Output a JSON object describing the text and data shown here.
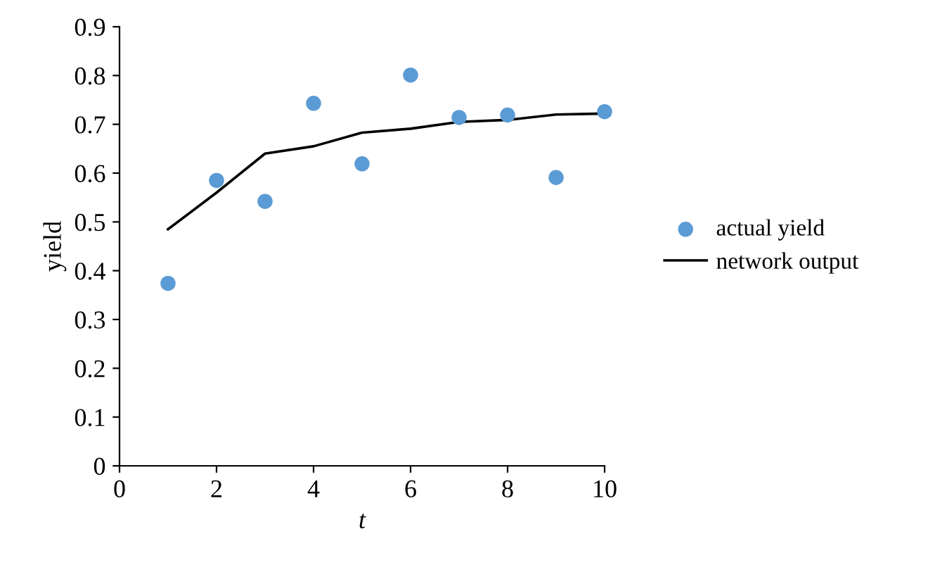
{
  "chart_data": {
    "type": "scatter",
    "xlabel": "t",
    "ylabel": "yield",
    "x": [
      1,
      2,
      3,
      4,
      5,
      6,
      7,
      8,
      9,
      10
    ],
    "series": [
      {
        "name": "actual yield",
        "color": "#5b9bd5",
        "marker": "circle",
        "values": [
          0.374,
          0.585,
          0.542,
          0.743,
          0.619,
          0.801,
          0.714,
          0.719,
          0.591,
          0.726
        ]
      },
      {
        "name": "network output",
        "type": "line",
        "color": "#000000",
        "marker": "none",
        "line_style": "solid",
        "values": [
          0.485,
          0.56,
          0.64,
          0.655,
          0.683,
          0.691,
          0.705,
          0.709,
          0.72,
          0.722
        ]
      }
    ],
    "xlim": [
      0,
      10
    ],
    "xticks": [
      0,
      2,
      4,
      6,
      8,
      10
    ],
    "ylim": [
      0,
      0.9
    ],
    "yticks": [
      0,
      0.1,
      0.2,
      0.3,
      0.4,
      0.5,
      0.6,
      0.7,
      0.8,
      0.9
    ],
    "grid": false,
    "legend": "right"
  }
}
